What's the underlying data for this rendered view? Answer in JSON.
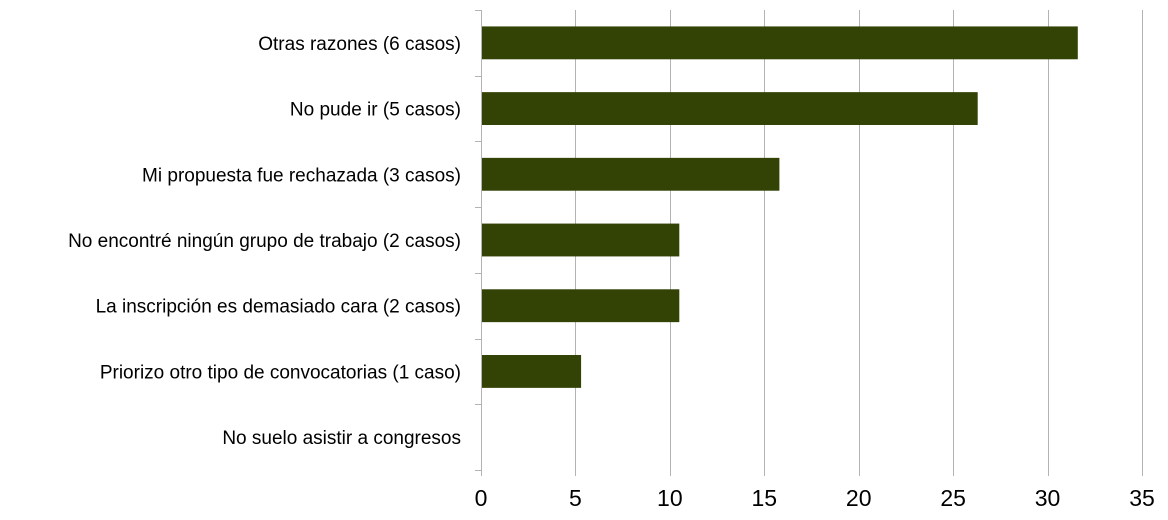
{
  "chart_data": {
    "type": "bar",
    "orientation": "horizontal",
    "title": "",
    "xlabel": "",
    "ylabel": "",
    "categories": [
      "Otras razones (6 casos)",
      "No pude ir (5 casos)",
      "Mi propuesta fue rechazada (3 casos)",
      "No encontré ningún grupo de trabajo (2 casos)",
      "La inscripción es demasiado cara (2 casos)",
      "Priorizo otro tipo de convocatorias (1 caso)",
      "No suelo asistir a congresos"
    ],
    "values": [
      31.6,
      26.3,
      15.8,
      10.5,
      10.5,
      5.3,
      0
    ],
    "xlim": [
      0,
      35
    ],
    "xticks": [
      0,
      5,
      10,
      15,
      20,
      25,
      30,
      35
    ],
    "grid": "vertical",
    "legend": "none",
    "bar_color": "#334205"
  }
}
